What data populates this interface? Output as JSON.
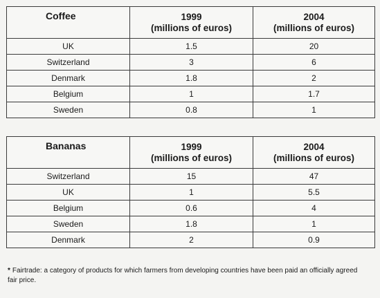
{
  "tables": [
    {
      "product": "Coffee",
      "col1": {
        "year": "1999",
        "unit": "(millions of euros)"
      },
      "col2": {
        "year": "2004",
        "unit": "(millions of euros)"
      },
      "rows": [
        {
          "country": "UK",
          "v1999": "1.5",
          "v2004": "20"
        },
        {
          "country": "Switzerland",
          "v1999": "3",
          "v2004": "6"
        },
        {
          "country": "Denmark",
          "v1999": "1.8",
          "v2004": "2"
        },
        {
          "country": "Belgium",
          "v1999": "1",
          "v2004": "1.7"
        },
        {
          "country": "Sweden",
          "v1999": "0.8",
          "v2004": "1"
        }
      ]
    },
    {
      "product": "Bananas",
      "col1": {
        "year": "1999",
        "unit": "(millions of euros)"
      },
      "col2": {
        "year": "2004",
        "unit": "(millions of euros)"
      },
      "rows": [
        {
          "country": "Switzerland",
          "v1999": "15",
          "v2004": "47"
        },
        {
          "country": "UK",
          "v1999": "1",
          "v2004": "5.5"
        },
        {
          "country": "Belgium",
          "v1999": "0.6",
          "v2004": "4"
        },
        {
          "country": "Sweden",
          "v1999": "1.8",
          "v2004": "1"
        },
        {
          "country": "Denmark",
          "v1999": "2",
          "v2004": "0.9"
        }
      ]
    }
  ],
  "footnote": {
    "marker": "*",
    "text": "Fairtrade: a category of products for which farmers from developing countries have been paid an officially agreed fair price."
  }
}
